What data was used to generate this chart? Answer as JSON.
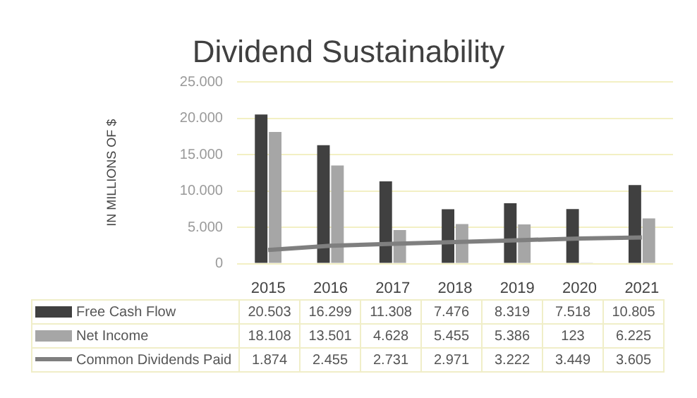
{
  "chart_data": {
    "type": "bar",
    "title": "Dividend Sustainability",
    "ylabel": "IN MILLIONS OF $",
    "categories": [
      "2015",
      "2016",
      "2017",
      "2018",
      "2019",
      "2020",
      "2021"
    ],
    "series": [
      {
        "name": "Free Cash Flow",
        "color": "#404040",
        "values": [
          20503,
          16299,
          11308,
          7476,
          8319,
          7518,
          10805
        ],
        "value_labels": [
          "20.503",
          "16.299",
          "11.308",
          "7.476",
          "8.319",
          "7.518",
          "10.805"
        ]
      },
      {
        "name": "Net Income",
        "color": "#a6a6a6",
        "values": [
          18108,
          13501,
          4628,
          5455,
          5386,
          123,
          6225
        ],
        "value_labels": [
          "18.108",
          "13.501",
          "4.628",
          "5.455",
          "5.386",
          "123",
          "6.225"
        ]
      },
      {
        "name": "Common Dividends Paid",
        "type": "line",
        "color": "#7f7f7f",
        "marker": "none",
        "values": [
          1874,
          2455,
          2731,
          2971,
          3222,
          3449,
          3605
        ],
        "value_labels": [
          "1.874",
          "2.455",
          "2.731",
          "2.971",
          "3.222",
          "3.449",
          "3.605"
        ]
      }
    ],
    "ylim": [
      0,
      25000
    ],
    "yticks": [
      {
        "value": 0,
        "label": "0"
      },
      {
        "value": 5000,
        "label": "5.000"
      },
      {
        "value": 10000,
        "label": "10.000"
      },
      {
        "value": 15000,
        "label": "15.000"
      },
      {
        "value": 20000,
        "label": "20.000"
      },
      {
        "value": 25000,
        "label": "25.000"
      }
    ],
    "grid": "y",
    "legend": "bottom"
  }
}
